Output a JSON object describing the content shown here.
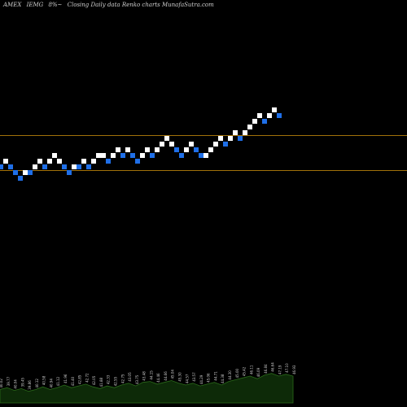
{
  "header": {
    "exchange": "AMEX",
    "symbol": "IEMG",
    "change": "8%~",
    "title": "Closing Daily data Renko charts MunafaSutra.com"
  },
  "colors": {
    "background": "#000000",
    "up_brick": "#ffffff",
    "down_brick": "#1f6fe8",
    "level_line": "#a0700a",
    "volume_fill": "#0d2a08",
    "volume_line": "#2a6a1a"
  },
  "chart_data": {
    "type": "renko",
    "title": "Closing Daily data Renko charts",
    "ylim": [
      0,
      100
    ],
    "levels": [
      66.9,
      58.2
    ],
    "bricks": [
      {
        "dir": "down",
        "value": 59.0
      },
      {
        "dir": "up",
        "value": 60.4
      },
      {
        "dir": "down",
        "value": 59.0
      },
      {
        "dir": "down",
        "value": 57.6
      },
      {
        "dir": "down",
        "value": 56.2
      },
      {
        "dir": "up",
        "value": 57.6
      },
      {
        "dir": "down",
        "value": 57.6
      },
      {
        "dir": "up",
        "value": 59.0
      },
      {
        "dir": "up",
        "value": 60.4
      },
      {
        "dir": "down",
        "value": 59.0
      },
      {
        "dir": "up",
        "value": 60.4
      },
      {
        "dir": "up",
        "value": 61.8
      },
      {
        "dir": "up",
        "value": 60.4
      },
      {
        "dir": "down",
        "value": 59.0
      },
      {
        "dir": "down",
        "value": 57.6
      },
      {
        "dir": "up",
        "value": 59.0
      },
      {
        "dir": "down",
        "value": 59.0
      },
      {
        "dir": "up",
        "value": 60.4
      },
      {
        "dir": "down",
        "value": 59.0
      },
      {
        "dir": "up",
        "value": 60.4
      },
      {
        "dir": "up",
        "value": 61.8
      },
      {
        "dir": "up",
        "value": 61.8
      },
      {
        "dir": "down",
        "value": 60.4
      },
      {
        "dir": "up",
        "value": 61.8
      },
      {
        "dir": "up",
        "value": 63.2
      },
      {
        "dir": "down",
        "value": 61.8
      },
      {
        "dir": "up",
        "value": 63.2
      },
      {
        "dir": "down",
        "value": 61.8
      },
      {
        "dir": "down",
        "value": 60.4
      },
      {
        "dir": "up",
        "value": 61.8
      },
      {
        "dir": "up",
        "value": 63.2
      },
      {
        "dir": "down",
        "value": 61.8
      },
      {
        "dir": "up",
        "value": 63.2
      },
      {
        "dir": "up",
        "value": 64.6
      },
      {
        "dir": "up",
        "value": 66.0
      },
      {
        "dir": "up",
        "value": 64.6
      },
      {
        "dir": "down",
        "value": 63.2
      },
      {
        "dir": "down",
        "value": 61.8
      },
      {
        "dir": "up",
        "value": 63.2
      },
      {
        "dir": "up",
        "value": 64.6
      },
      {
        "dir": "down",
        "value": 63.2
      },
      {
        "dir": "down",
        "value": 61.8
      },
      {
        "dir": "up",
        "value": 61.8
      },
      {
        "dir": "up",
        "value": 63.2
      },
      {
        "dir": "up",
        "value": 64.6
      },
      {
        "dir": "up",
        "value": 66.0
      },
      {
        "dir": "down",
        "value": 64.6
      },
      {
        "dir": "up",
        "value": 66.0
      },
      {
        "dir": "up",
        "value": 67.4
      },
      {
        "dir": "down",
        "value": 66.0
      },
      {
        "dir": "up",
        "value": 67.4
      },
      {
        "dir": "up",
        "value": 68.8
      },
      {
        "dir": "up",
        "value": 70.2
      },
      {
        "dir": "up",
        "value": 71.6
      },
      {
        "dir": "down",
        "value": 70.2
      },
      {
        "dir": "up",
        "value": 71.6
      },
      {
        "dir": "up",
        "value": 73.0
      },
      {
        "dir": "down",
        "value": 71.6
      }
    ],
    "volume": [
      {
        "v": 30,
        "label": "40.02"
      },
      {
        "v": 34,
        "label": "39.77"
      },
      {
        "v": 28,
        "label": "40.04"
      },
      {
        "v": 32,
        "label": "39.45"
      },
      {
        "v": 26,
        "label": "39.86"
      },
      {
        "v": 30,
        "label": "40.12"
      },
      {
        "v": 36,
        "label": "40.58"
      },
      {
        "v": 30,
        "label": "40.94"
      },
      {
        "v": 34,
        "label": "41.12"
      },
      {
        "v": 40,
        "label": "41.96"
      },
      {
        "v": 34,
        "label": "41.40"
      },
      {
        "v": 38,
        "label": "42.85"
      },
      {
        "v": 42,
        "label": "42.72"
      },
      {
        "v": 36,
        "label": "42.05"
      },
      {
        "v": 32,
        "label": "41.88"
      },
      {
        "v": 38,
        "label": "42.33"
      },
      {
        "v": 34,
        "label": "42.55"
      },
      {
        "v": 40,
        "label": "42.75"
      },
      {
        "v": 44,
        "label": "43.05"
      },
      {
        "v": 38,
        "label": "43.75"
      },
      {
        "v": 46,
        "label": "43.48"
      },
      {
        "v": 48,
        "label": "44.15"
      },
      {
        "v": 42,
        "label": "44.46"
      },
      {
        "v": 46,
        "label": "44.66"
      },
      {
        "v": 50,
        "label": "45.04"
      },
      {
        "v": 44,
        "label": "45.30"
      },
      {
        "v": 40,
        "label": "44.57"
      },
      {
        "v": 44,
        "label": "43.57"
      },
      {
        "v": 38,
        "label": "44.29"
      },
      {
        "v": 42,
        "label": "45.06"
      },
      {
        "v": 46,
        "label": "44.71"
      },
      {
        "v": 40,
        "label": "44.38"
      },
      {
        "v": 48,
        "label": "44.30"
      },
      {
        "v": 52,
        "label": "45.00"
      },
      {
        "v": 56,
        "label": "45.42"
      },
      {
        "v": 60,
        "label": "46.11"
      },
      {
        "v": 54,
        "label": "46.09"
      },
      {
        "v": 62,
        "label": "46.84"
      },
      {
        "v": 66,
        "label": "46.64"
      },
      {
        "v": 60,
        "label": "47.19"
      },
      {
        "v": 64,
        "label": "47.10"
      },
      {
        "v": 60,
        "label": "46.93"
      }
    ]
  }
}
